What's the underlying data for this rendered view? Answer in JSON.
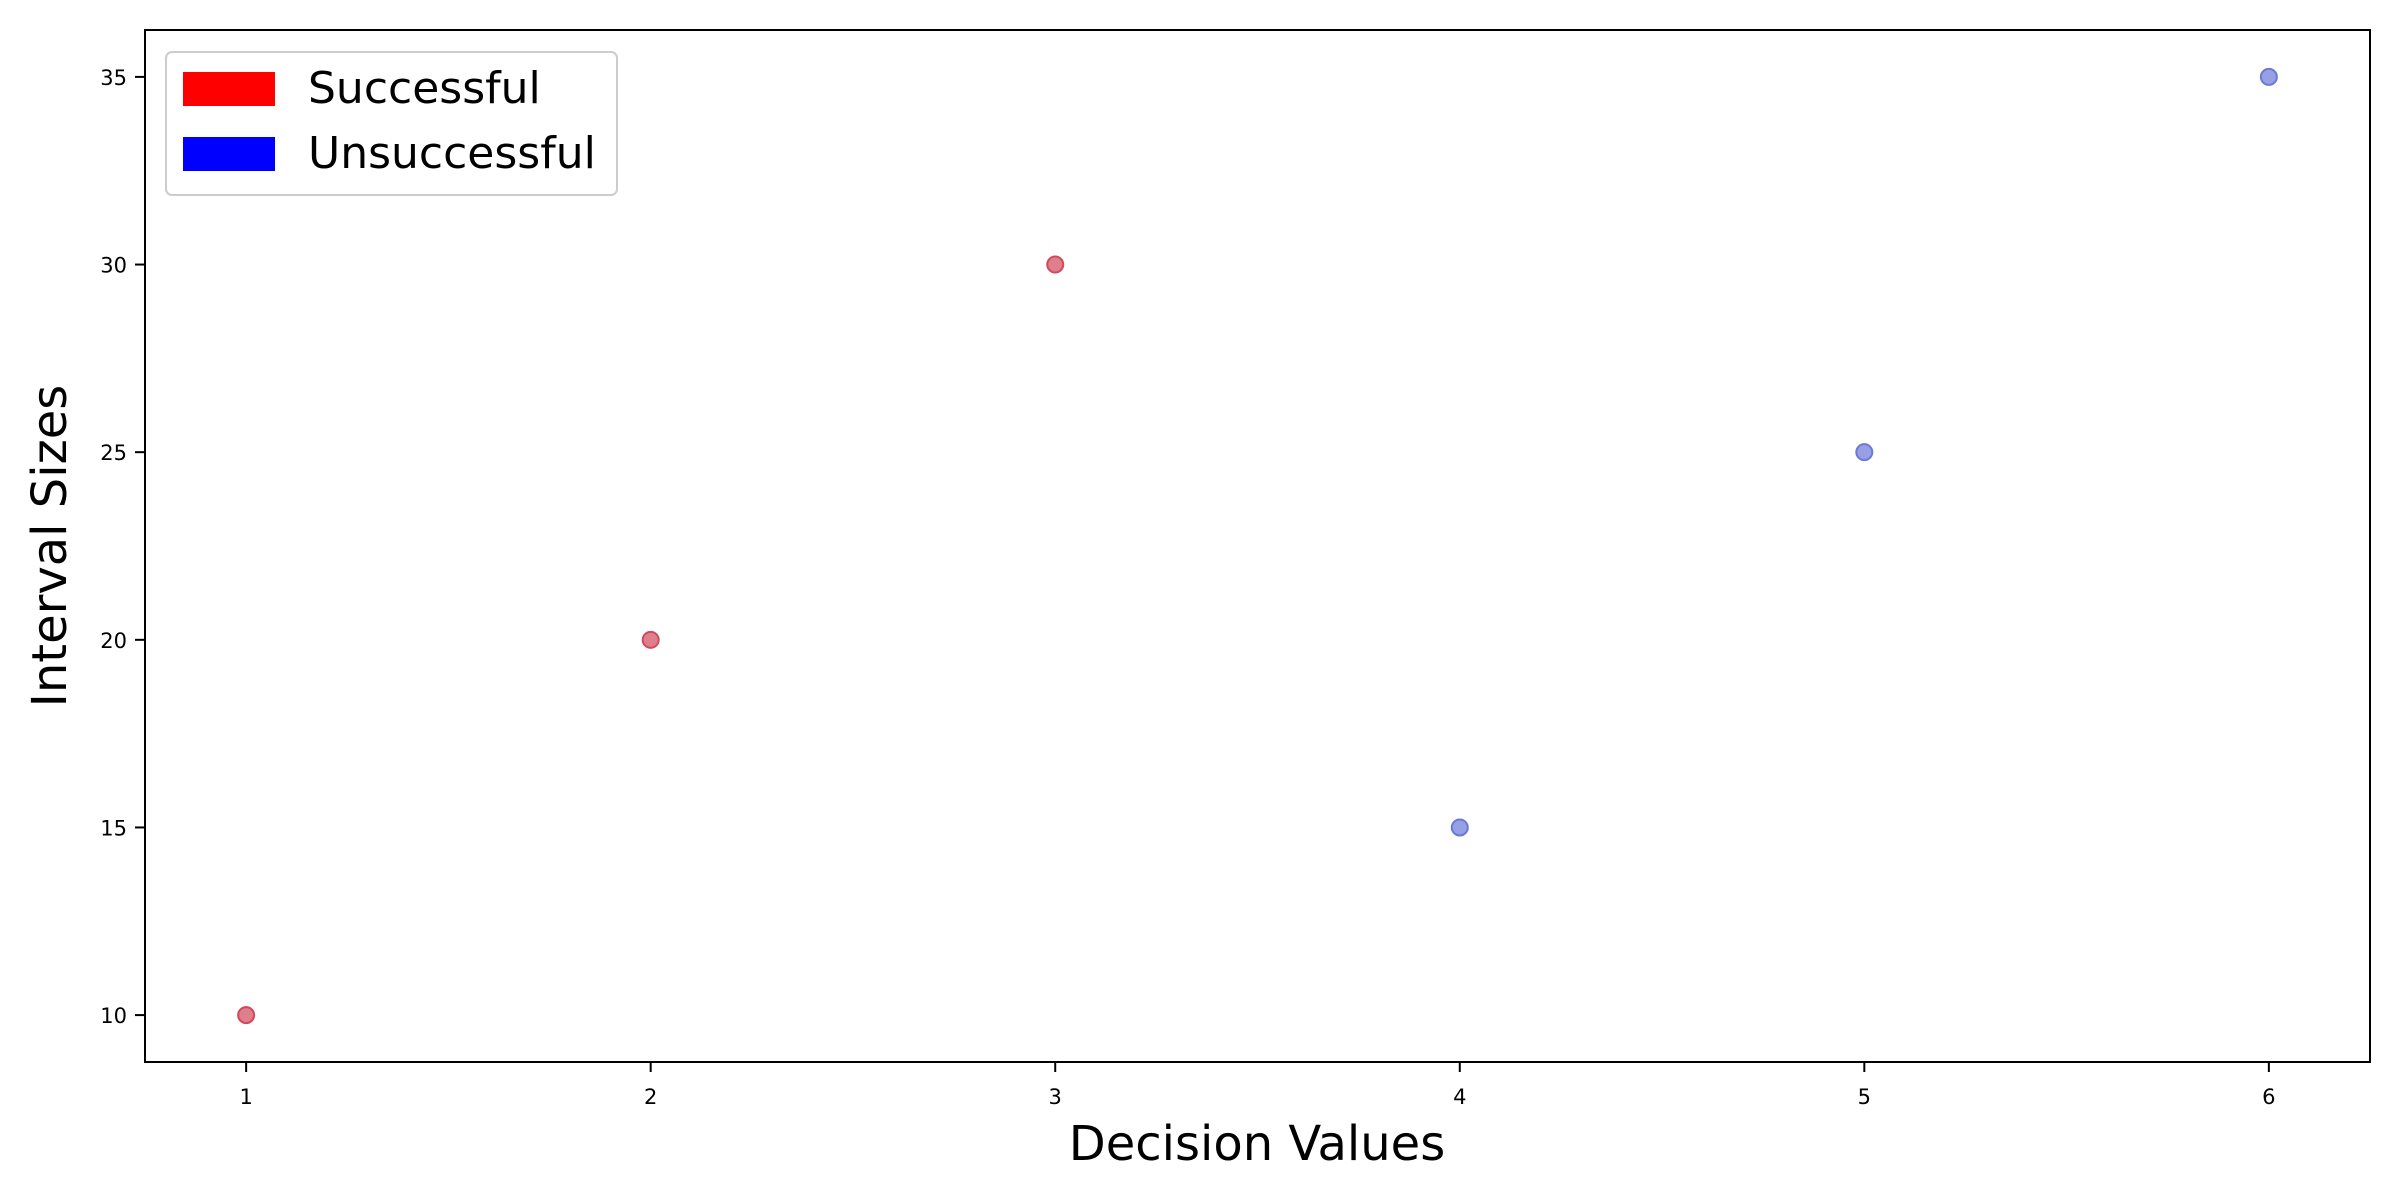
{
  "chart_data": {
    "type": "scatter",
    "xlabel": "Decision Values",
    "ylabel": "Interval Sizes",
    "xlim": [
      0.75,
      6.25
    ],
    "ylim": [
      8.75,
      36.25
    ],
    "xticks": [
      1,
      2,
      3,
      4,
      5,
      6
    ],
    "yticks": [
      10,
      15,
      20,
      25,
      30,
      35
    ],
    "grid": false,
    "legend_position": "top-left",
    "legend": [
      {
        "label": "Successful",
        "color": "#ff0000"
      },
      {
        "label": "Unsuccessful",
        "color": "#0000ff"
      }
    ],
    "series": [
      {
        "name": "Successful",
        "color": "#d1495b",
        "x": [
          1,
          2,
          3
        ],
        "y": [
          10,
          20,
          30
        ]
      },
      {
        "name": "Unsuccessful",
        "color": "#6b78d6",
        "x": [
          4,
          5,
          6
        ],
        "y": [
          15,
          25,
          35
        ]
      }
    ]
  }
}
